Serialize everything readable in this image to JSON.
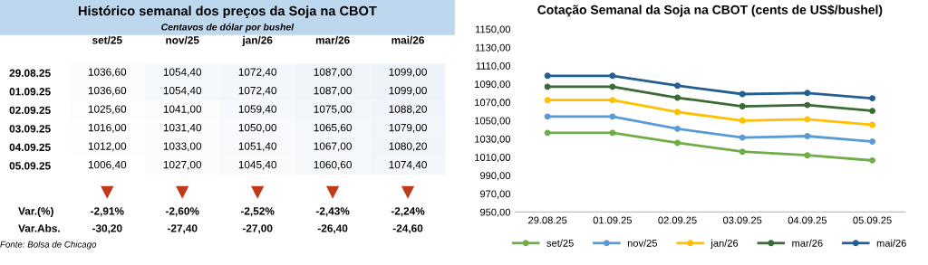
{
  "chart_data": [
    {
      "type": "heatmap",
      "title": "Histórico semanal dos preços da Soja na CBOT",
      "subtitle": "Centavos de dólar por bushel",
      "categories": [
        "set/25",
        "nov/25",
        "jan/26",
        "mar/26",
        "mai/26"
      ],
      "y_categories": [
        "29.08.25",
        "01.09.25",
        "02.09.25",
        "03.09.25",
        "04.09.25",
        "05.09.25"
      ],
      "cells": [
        [
          1036.6,
          1054.4,
          1072.4,
          1087.0,
          1099.0
        ],
        [
          1036.6,
          1054.4,
          1072.4,
          1087.0,
          1099.0
        ],
        [
          1025.6,
          1041.0,
          1059.4,
          1075.0,
          1088.2
        ],
        [
          1016.0,
          1031.4,
          1050.0,
          1065.6,
          1079.0
        ],
        [
          1012.0,
          1033.0,
          1051.4,
          1067.0,
          1080.2
        ],
        [
          1006.4,
          1027.0,
          1045.4,
          1060.6,
          1074.4
        ]
      ],
      "cell_labels": [
        [
          "1036,60",
          "1054,40",
          "1072,40",
          "1087,00",
          "1099,00"
        ],
        [
          "1036,60",
          "1054,40",
          "1072,40",
          "1087,00",
          "1099,00"
        ],
        [
          "1025,60",
          "1041,00",
          "1059,40",
          "1075,00",
          "1088,20"
        ],
        [
          "1016,00",
          "1031,40",
          "1050,00",
          "1065,60",
          "1079,00"
        ],
        [
          "1012,00",
          "1033,00",
          "1051,40",
          "1067,00",
          "1080,20"
        ],
        [
          "1006,40",
          "1027,00",
          "1045,40",
          "1060,60",
          "1074,40"
        ]
      ],
      "annotations": [
        "Var.(%)",
        "-2,91%",
        "-2,60%",
        "-2,52%",
        "-2,43%",
        "-2,24%",
        "Var.Abs.",
        "-30,20",
        "-27,40",
        "-27,00",
        "-26,40",
        "-24,60",
        "Fonte: Bolsa de Chicago"
      ]
    },
    {
      "type": "line",
      "title": "Cotação Semanal da Soja na CBOT (cents de US$/bushel)",
      "categories": [
        "29.08.25",
        "01.09.25",
        "02.09.25",
        "03.09.25",
        "04.09.25",
        "05.09.25"
      ],
      "series": [
        {
          "name": "set/25",
          "color": "#70ad47",
          "values": [
            1036.6,
            1036.6,
            1025.6,
            1016.0,
            1012.0,
            1006.4
          ]
        },
        {
          "name": "nov/25",
          "color": "#5b9bd5",
          "values": [
            1054.4,
            1054.4,
            1041.0,
            1031.4,
            1033.0,
            1027.0
          ]
        },
        {
          "name": "jan/26",
          "color": "#ffc000",
          "values": [
            1072.4,
            1072.4,
            1059.4,
            1050.0,
            1051.4,
            1045.4
          ]
        },
        {
          "name": "mar/26",
          "color": "#3a6b35",
          "values": [
            1087.0,
            1087.0,
            1075.0,
            1065.6,
            1067.0,
            1060.6
          ]
        },
        {
          "name": "mai/26",
          "color": "#255e91",
          "values": [
            1099.0,
            1099.0,
            1088.2,
            1079.0,
            1080.2,
            1074.4
          ]
        }
      ],
      "ylim": [
        950,
        1150
      ],
      "yticks": [
        {
          "value": 950,
          "label": "950,00"
        },
        {
          "value": 970,
          "label": "970,00"
        },
        {
          "value": 990,
          "label": "990,00"
        },
        {
          "value": 1010,
          "label": "1010,00"
        },
        {
          "value": 1030,
          "label": "1030,00"
        },
        {
          "value": 1050,
          "label": "1050,00"
        },
        {
          "value": 1070,
          "label": "1070,00"
        },
        {
          "value": 1090,
          "label": "1090,00"
        },
        {
          "value": 1110,
          "label": "1110,00"
        },
        {
          "value": 1130,
          "label": "1130,00"
        },
        {
          "value": 1150,
          "label": "1150,00"
        }
      ],
      "marker": "circle",
      "line_style": "solid",
      "legend": "bottom",
      "grid": false
    }
  ]
}
